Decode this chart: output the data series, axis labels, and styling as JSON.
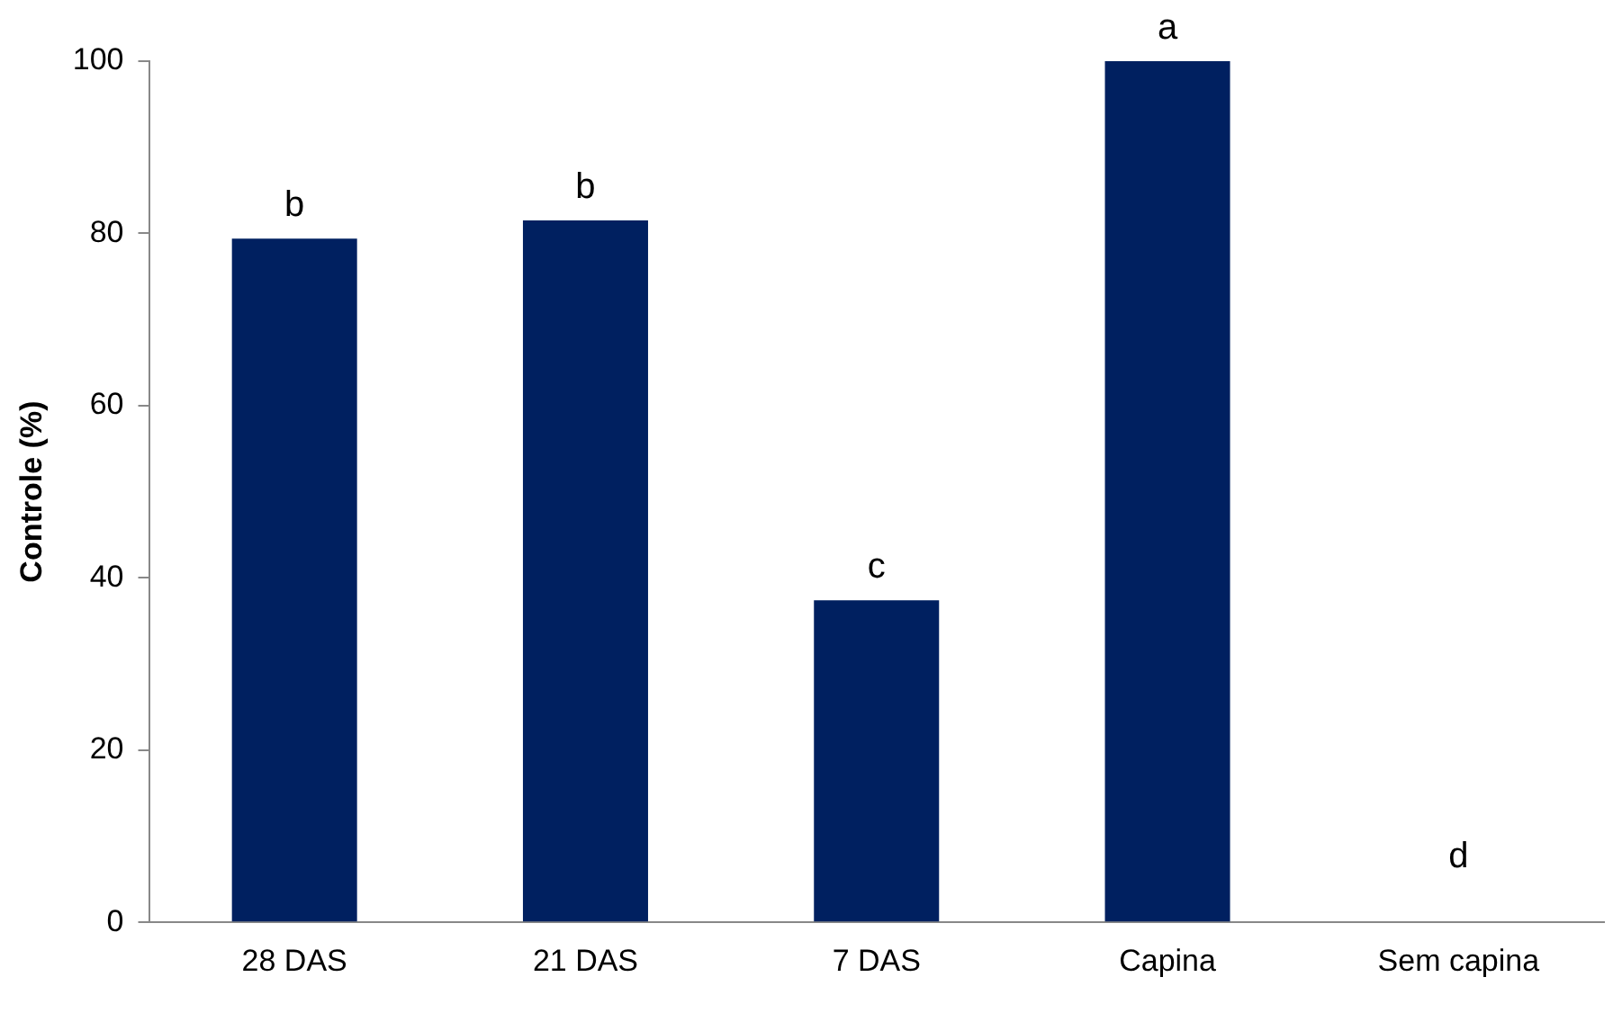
{
  "chart_data": {
    "type": "bar",
    "ylabel": "Controle (%)",
    "categories": [
      "28 DAS",
      "21 DAS",
      "7 DAS",
      "Capina",
      "Sem capina"
    ],
    "values": [
      79.4,
      81.5,
      37.4,
      100,
      0
    ],
    "color": "#002060",
    "ylim": [
      0,
      100
    ],
    "yticks": [
      0,
      20,
      40,
      60,
      80,
      100
    ],
    "grid": false,
    "legend": false,
    "annotations": [
      {
        "text": "b",
        "x": "28 DAS",
        "y": 79.4
      },
      {
        "text": "b",
        "x": "21 DAS",
        "y": 81.5
      },
      {
        "text": "c",
        "x": "7 DAS",
        "y": 37.4
      },
      {
        "text": "a",
        "x": "Capina",
        "y": 100
      },
      {
        "text": "d",
        "x": "Sem capina",
        "y": 0
      }
    ]
  }
}
